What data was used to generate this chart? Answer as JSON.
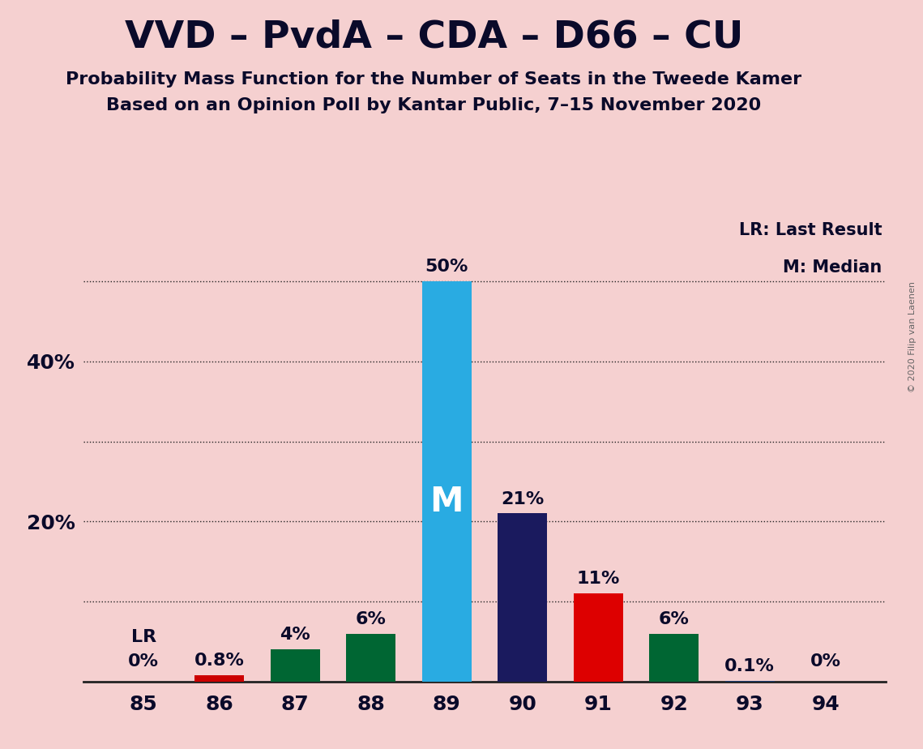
{
  "title": "VVD – PvdA – CDA – D66 – CU",
  "subtitle1": "Probability Mass Function for the Number of Seats in the Tweede Kamer",
  "subtitle2": "Based on an Opinion Poll by Kantar Public, 7–15 November 2020",
  "copyright": "© 2020 Filip van Laenen",
  "seats": [
    85,
    86,
    87,
    88,
    89,
    90,
    91,
    92,
    93,
    94
  ],
  "values": [
    0.0,
    0.8,
    4.0,
    6.0,
    50.0,
    21.0,
    11.0,
    6.0,
    0.1,
    0.0
  ],
  "bar_colors": [
    "#f2c8c8",
    "#cc0000",
    "#006633",
    "#006633",
    "#29abe2",
    "#1a1a5e",
    "#dd0000",
    "#006633",
    "#1a3a6e",
    "#1a3a6e"
  ],
  "labels": [
    "0%",
    "0.8%",
    "4%",
    "6%",
    "50%",
    "21%",
    "11%",
    "6%",
    "0.1%",
    "0%"
  ],
  "median_bar_idx": 4,
  "lr_bar_idx": 0,
  "median_label": "M",
  "lr_label": "LR",
  "legend_lr": "LR: Last Result",
  "legend_m": "M: Median",
  "background_color": "#f5d0d0",
  "grid_lines": [
    10,
    20,
    30,
    40,
    50
  ],
  "ytick_positions": [
    0,
    20,
    40
  ],
  "ytick_labels": [
    "",
    "20%",
    "40%"
  ],
  "title_fontsize": 34,
  "subtitle_fontsize": 16,
  "label_fontsize": 16,
  "tick_fontsize": 18,
  "bar_width": 0.65,
  "ylim_max": 58
}
